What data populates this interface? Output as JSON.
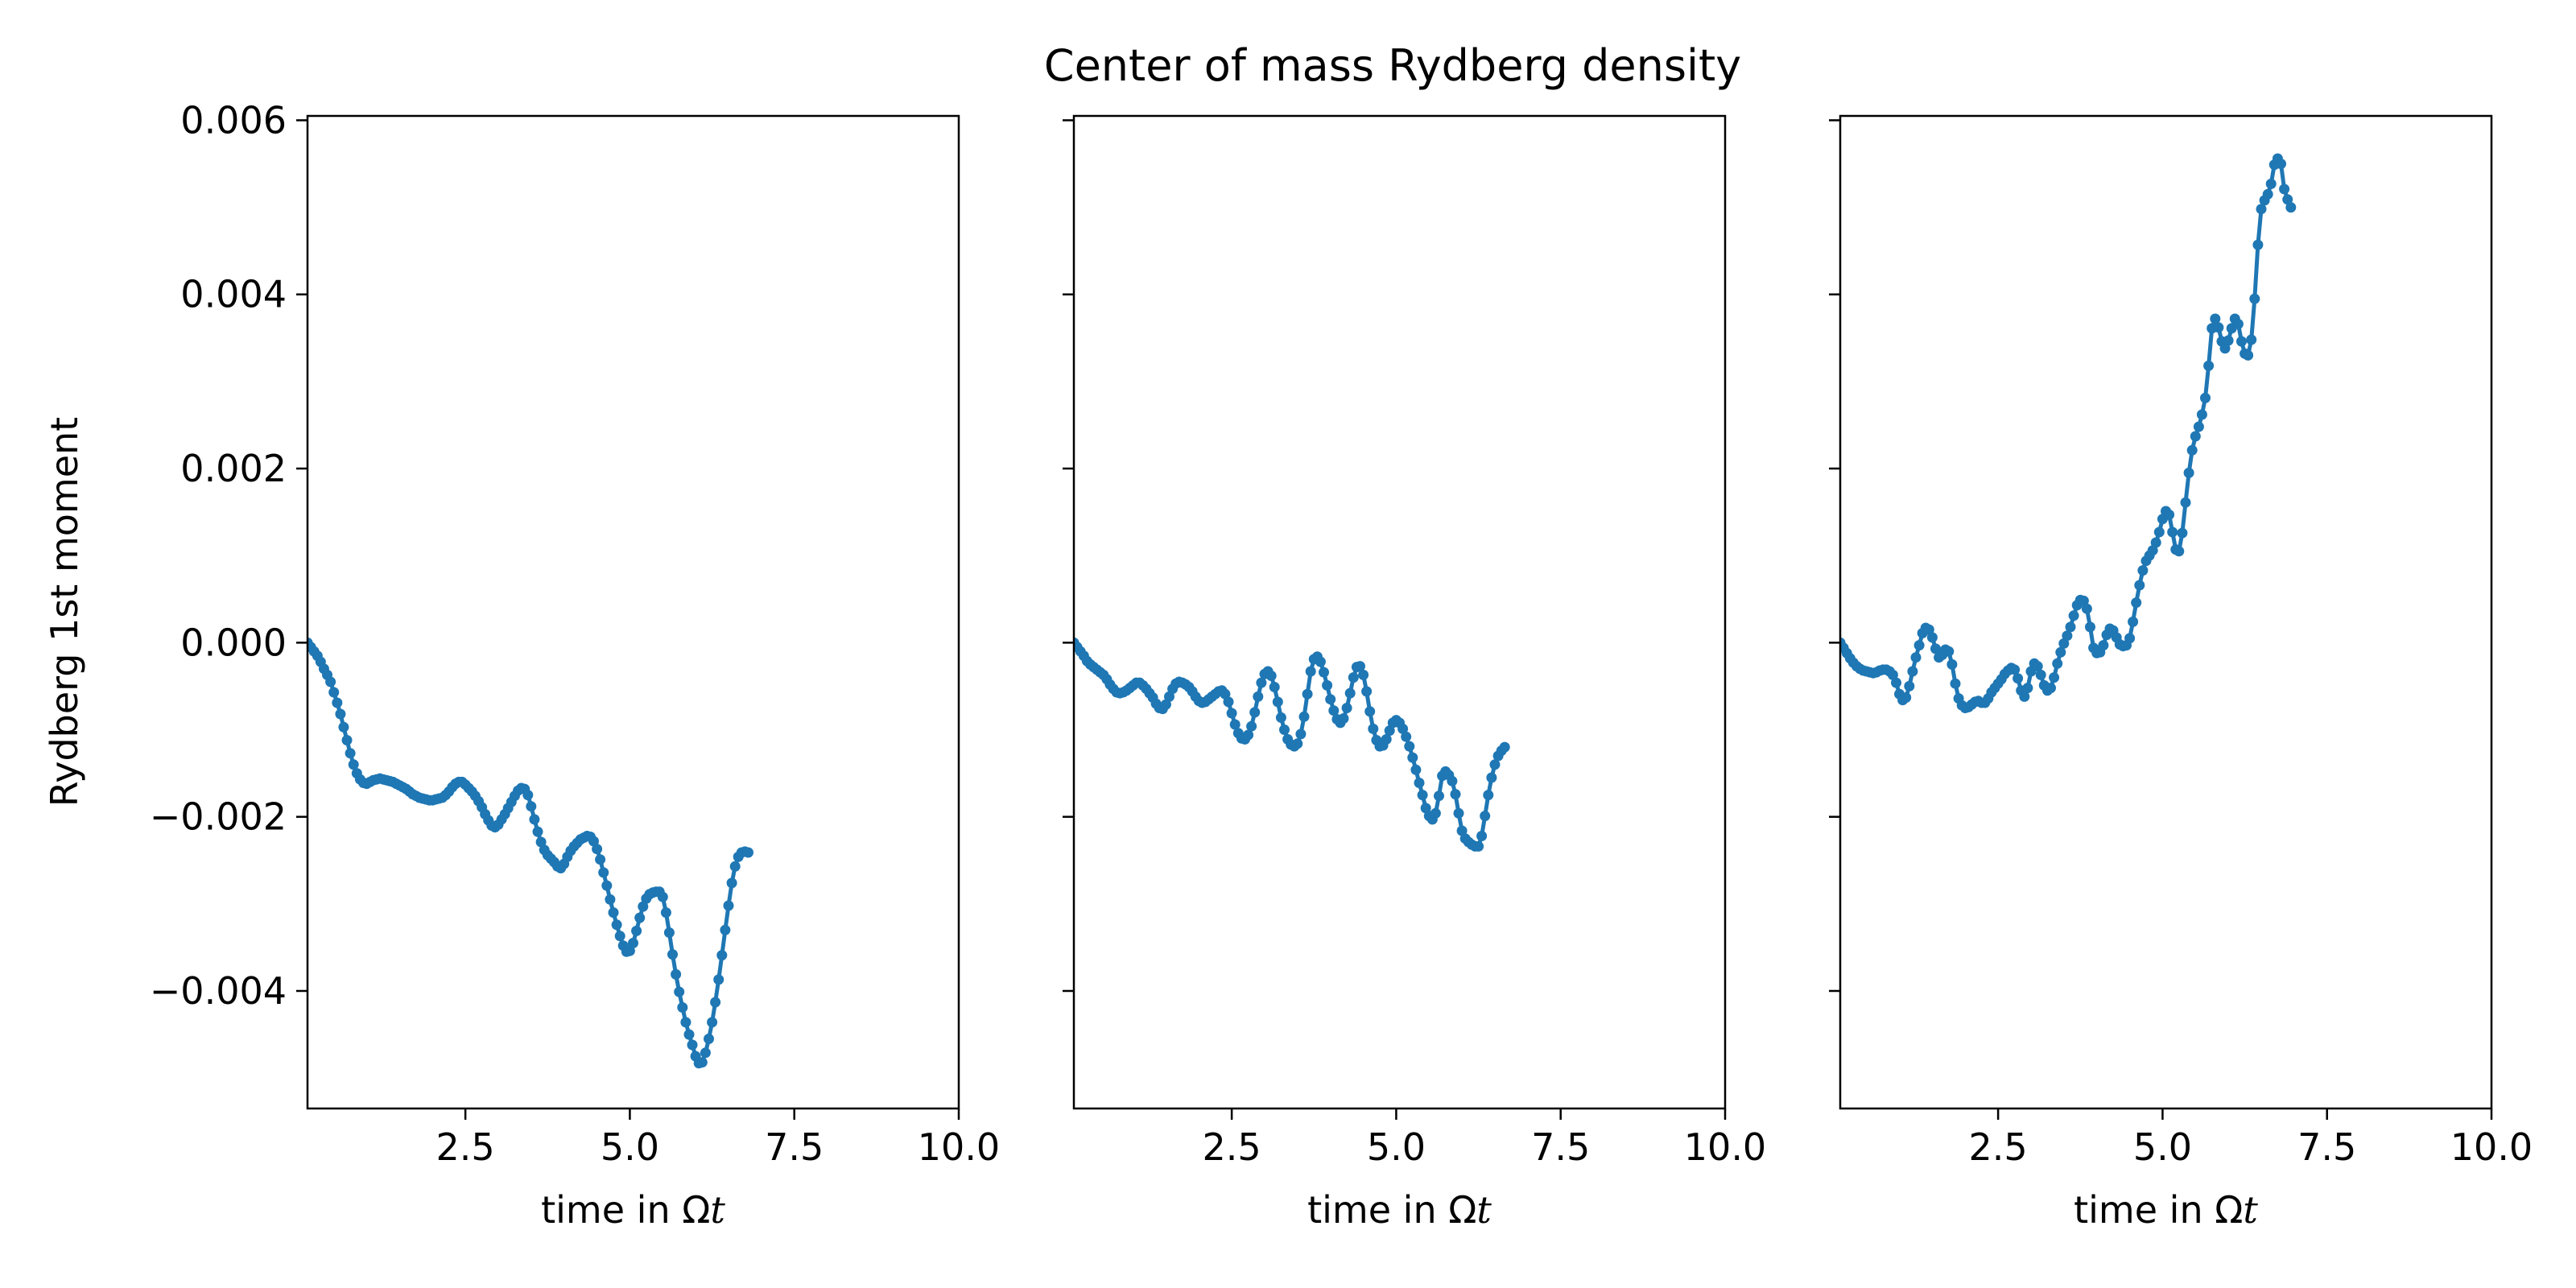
{
  "chart_data": {
    "title": "Center of mass Rydberg density",
    "ylabel": "Rydberg 1st moment",
    "xlabel_prefix": "time in Ω",
    "xlabel_var": "t",
    "xlim": [
      0.1,
      10.0
    ],
    "ylim": [
      -0.00535,
      0.00605
    ],
    "xticks": [
      "2.5",
      "5.0",
      "7.5",
      "10.0"
    ],
    "xtick_values": [
      2.5,
      5.0,
      7.5,
      10.0
    ],
    "yticks": [
      "0.006",
      "0.004",
      "0.002",
      "0.000",
      "−0.002",
      "−0.004"
    ],
    "ytick_values": [
      0.006,
      0.004,
      0.002,
      0.0,
      -0.002,
      -0.004
    ],
    "series_color": "#1f77b4",
    "panels": [
      {
        "type": "line",
        "x_start": 0.1,
        "x_step": 0.05,
        "values": [
          0.0,
          -5e-05,
          -0.0001,
          -0.00015,
          -0.00022,
          -0.0003,
          -0.00037,
          -0.00045,
          -0.00057,
          -0.00069,
          -0.00082,
          -0.00097,
          -0.00112,
          -0.00127,
          -0.0014,
          -0.0015,
          -0.00157,
          -0.00161,
          -0.00162,
          -0.0016,
          -0.00158,
          -0.00157,
          -0.00156,
          -0.00157,
          -0.00158,
          -0.00159,
          -0.0016,
          -0.00162,
          -0.00164,
          -0.00166,
          -0.00168,
          -0.00171,
          -0.00174,
          -0.00176,
          -0.00178,
          -0.00179,
          -0.0018,
          -0.00181,
          -0.00181,
          -0.0018,
          -0.00179,
          -0.00178,
          -0.00175,
          -0.00171,
          -0.00166,
          -0.00162,
          -0.0016,
          -0.0016,
          -0.00163,
          -0.00167,
          -0.00171,
          -0.00176,
          -0.00182,
          -0.00189,
          -0.00197,
          -0.00204,
          -0.0021,
          -0.00212,
          -0.00209,
          -0.00203,
          -0.00197,
          -0.0019,
          -0.00183,
          -0.00176,
          -0.0017,
          -0.00167,
          -0.00168,
          -0.00175,
          -0.00188,
          -0.00203,
          -0.00217,
          -0.00229,
          -0.00238,
          -0.00244,
          -0.00248,
          -0.00252,
          -0.00257,
          -0.00259,
          -0.00254,
          -0.00246,
          -0.00239,
          -0.00234,
          -0.0023,
          -0.00226,
          -0.00224,
          -0.00222,
          -0.00223,
          -0.00228,
          -0.00237,
          -0.00249,
          -0.00264,
          -0.00279,
          -0.00295,
          -0.0031,
          -0.00324,
          -0.00337,
          -0.00348,
          -0.00355,
          -0.00354,
          -0.00345,
          -0.00331,
          -0.00316,
          -0.00303,
          -0.00294,
          -0.00289,
          -0.00287,
          -0.00286,
          -0.00286,
          -0.00292,
          -0.0031,
          -0.00333,
          -0.00358,
          -0.00381,
          -0.00401,
          -0.00419,
          -0.00436,
          -0.0045,
          -0.00462,
          -0.00475,
          -0.00483,
          -0.00482,
          -0.00471,
          -0.00455,
          -0.00436,
          -0.00413,
          -0.00387,
          -0.00359,
          -0.0033,
          -0.00302,
          -0.00276,
          -0.00257,
          -0.00246,
          -0.00241,
          -0.0024,
          -0.00241
        ]
      },
      {
        "type": "line",
        "x_start": 0.1,
        "x_step": 0.05,
        "values": [
          0.0,
          -5e-05,
          -0.0001,
          -0.00015,
          -0.00021,
          -0.00025,
          -0.00028,
          -0.00031,
          -0.00034,
          -0.00037,
          -0.00042,
          -0.00048,
          -0.00053,
          -0.00057,
          -0.00058,
          -0.00057,
          -0.00055,
          -0.00052,
          -0.00049,
          -0.00046,
          -0.00046,
          -0.00049,
          -0.00053,
          -0.00058,
          -0.00063,
          -0.0007,
          -0.00075,
          -0.00076,
          -0.00071,
          -0.00062,
          -0.00053,
          -0.00047,
          -0.00045,
          -0.00046,
          -0.00048,
          -0.00051,
          -0.00056,
          -0.00062,
          -0.00067,
          -0.00069,
          -0.00068,
          -0.00065,
          -0.00062,
          -0.00059,
          -0.00056,
          -0.00055,
          -0.00059,
          -0.00068,
          -0.00081,
          -0.00094,
          -0.00104,
          -0.0011,
          -0.00111,
          -0.00106,
          -0.00096,
          -0.0008,
          -0.00062,
          -0.00046,
          -0.00036,
          -0.00033,
          -0.00038,
          -0.00051,
          -0.00068,
          -0.00086,
          -0.001,
          -0.00111,
          -0.00117,
          -0.00119,
          -0.00116,
          -0.00105,
          -0.00085,
          -0.00059,
          -0.00033,
          -0.00019,
          -0.00016,
          -0.00022,
          -0.00034,
          -0.00049,
          -0.00065,
          -0.00078,
          -0.00088,
          -0.00092,
          -0.00087,
          -0.00075,
          -0.00058,
          -0.0004,
          -0.00028,
          -0.00027,
          -0.00037,
          -0.00056,
          -0.00079,
          -0.00099,
          -0.00112,
          -0.00119,
          -0.00118,
          -0.00111,
          -0.00101,
          -0.00092,
          -0.00089,
          -0.00092,
          -0.00099,
          -0.00108,
          -0.00119,
          -0.00132,
          -0.00146,
          -0.00161,
          -0.00175,
          -0.0019,
          -0.00199,
          -0.00203,
          -0.00196,
          -0.00176,
          -0.00153,
          -0.00148,
          -0.00152,
          -0.00159,
          -0.00174,
          -0.00196,
          -0.00216,
          -0.00225,
          -0.00229,
          -0.00232,
          -0.00234,
          -0.00234,
          -0.00222,
          -0.00199,
          -0.00175,
          -0.00155,
          -0.0014,
          -0.0013,
          -0.00124,
          -0.0012
        ]
      },
      {
        "type": "line",
        "x_start": 0.1,
        "x_step": 0.05,
        "values": [
          0.0,
          -6e-05,
          -0.00012,
          -0.00018,
          -0.00023,
          -0.00027,
          -0.0003,
          -0.00032,
          -0.00033,
          -0.00034,
          -0.00035,
          -0.00034,
          -0.00032,
          -0.00031,
          -0.00031,
          -0.00033,
          -0.00037,
          -0.00046,
          -0.00059,
          -0.00066,
          -0.00063,
          -0.0005,
          -0.00033,
          -0.00017,
          -3e-05,
          0.00011,
          0.00017,
          0.00015,
          6e-05,
          -7e-05,
          -0.00017,
          -0.00014,
          -8e-05,
          -0.0001,
          -0.00025,
          -0.00047,
          -0.00064,
          -0.00072,
          -0.00075,
          -0.00074,
          -0.00071,
          -0.00068,
          -0.00067,
          -0.00069,
          -0.00069,
          -0.00064,
          -0.00057,
          -0.00052,
          -0.00047,
          -0.00042,
          -0.00036,
          -0.00032,
          -0.00029,
          -0.00031,
          -0.00041,
          -0.00055,
          -0.00062,
          -0.00052,
          -0.00033,
          -0.00024,
          -0.00027,
          -0.00037,
          -0.00049,
          -0.00055,
          -0.00052,
          -0.0004,
          -0.00024,
          -0.00011,
          -1e-05,
          8e-05,
          0.00018,
          0.00031,
          0.00043,
          0.00049,
          0.00048,
          0.00039,
          0.00018,
          -6e-05,
          -0.00012,
          -0.00011,
          -3e-05,
          9e-05,
          0.00016,
          0.00014,
          6e-05,
          -2e-05,
          -4e-05,
          -3e-05,
          5e-05,
          0.00024,
          0.00046,
          0.00066,
          0.00083,
          0.00094,
          0.001,
          0.00106,
          0.00115,
          0.00127,
          0.00142,
          0.00151,
          0.00147,
          0.00127,
          0.00107,
          0.00105,
          0.00126,
          0.00161,
          0.00195,
          0.00221,
          0.00237,
          0.00248,
          0.00262,
          0.00281,
          0.00318,
          0.00361,
          0.00372,
          0.00362,
          0.00346,
          0.00338,
          0.00347,
          0.00361,
          0.00372,
          0.00366,
          0.00346,
          0.00332,
          0.0033,
          0.00348,
          0.00395,
          0.00457,
          0.00498,
          0.00508,
          0.00515,
          0.00527,
          0.00549,
          0.00556,
          0.0055,
          0.00521,
          0.00509,
          0.005
        ]
      }
    ]
  }
}
